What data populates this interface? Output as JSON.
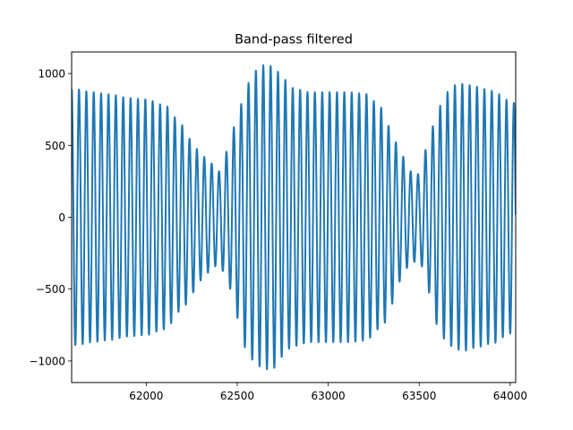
{
  "chart_data": {
    "type": "line",
    "title": "Band-pass filtered",
    "xlabel": "",
    "ylabel": "",
    "xlim": [
      61590,
      64030
    ],
    "ylim": [
      -1150,
      1150
    ],
    "xticks": [
      62000,
      62500,
      63000,
      63500,
      64000
    ],
    "xtick_labels": [
      "62000",
      "62500",
      "63000",
      "63500",
      "64000"
    ],
    "yticks": [
      -1000,
      -500,
      0,
      500,
      1000
    ],
    "ytick_labels": [
      "−1000",
      "−500",
      "0",
      "500",
      "1000"
    ],
    "grid": false,
    "legend": "none",
    "series": [
      {
        "color": "#1f77b4",
        "carrier_period": 40.5,
        "x": [
          61590,
          61620,
          61700,
          61800,
          61900,
          62000,
          62100,
          62200,
          62250,
          62300,
          62350,
          62400,
          62450,
          62500,
          62550,
          62600,
          62650,
          62700,
          62750,
          62800,
          62900,
          63000,
          63100,
          63200,
          63300,
          63340,
          63400,
          63450,
          63500,
          63550,
          63600,
          63650,
          63700,
          63750,
          63800,
          63900,
          64000,
          64030
        ],
        "envelope": [
          890,
          890,
          870,
          855,
          830,
          820,
          780,
          640,
          530,
          440,
          380,
          320,
          470,
          700,
          920,
          1020,
          1060,
          1050,
          970,
          900,
          870,
          870,
          870,
          860,
          760,
          620,
          440,
          320,
          300,
          520,
          750,
          870,
          920,
          930,
          910,
          880,
          810,
          790
        ]
      }
    ]
  }
}
